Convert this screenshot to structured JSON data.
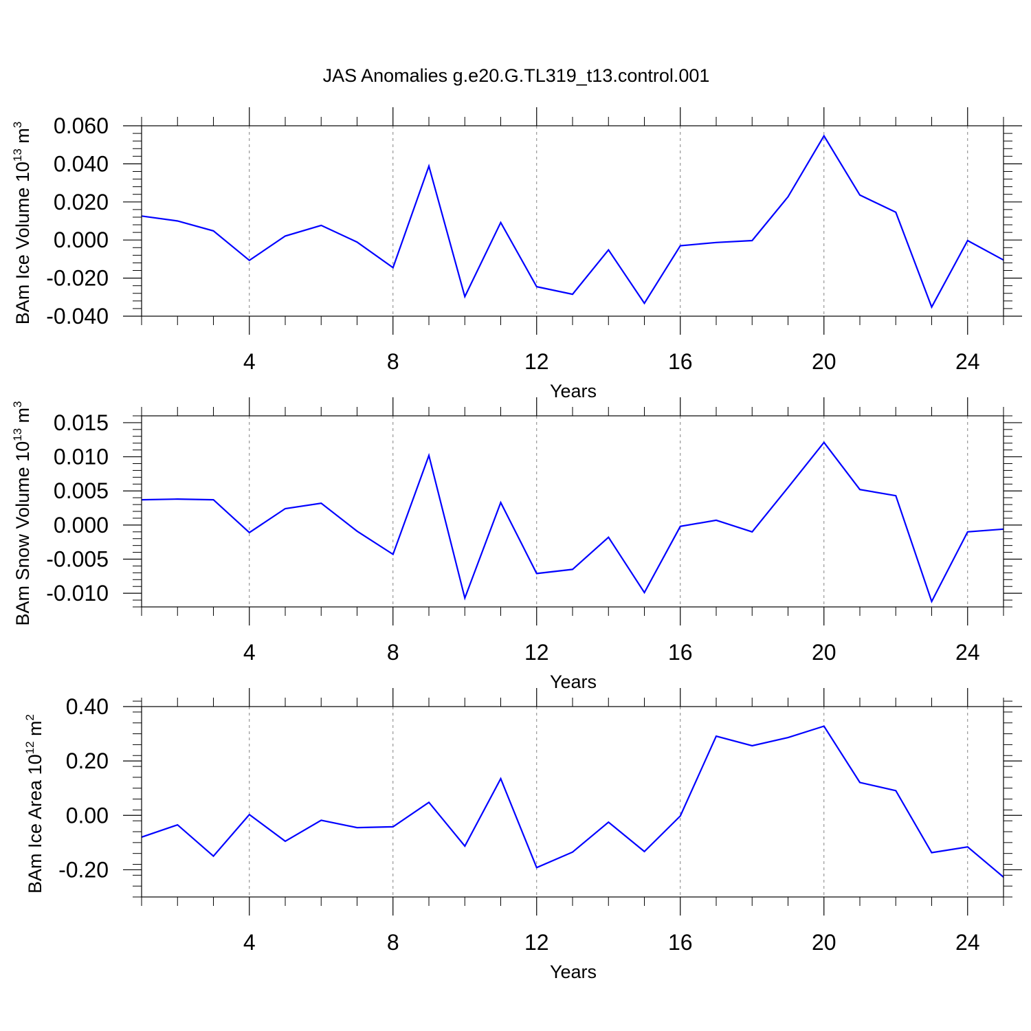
{
  "figure": {
    "title": "JAS Anomalies g.e20.G.TL319_t13.control.001"
  },
  "colors": {
    "series": "#0000ff",
    "axis": "#000000",
    "grid": "#808080"
  },
  "chart_data": [
    {
      "type": "line",
      "title": "",
      "ylabel": {
        "prefix": "BAm Ice Volume 10",
        "exp": "13",
        "unit": " m",
        "unit_exp": "3"
      },
      "xlabel": "Years",
      "xlim": [
        1,
        25
      ],
      "ylim": [
        -0.04,
        0.06
      ],
      "xticks": [
        4,
        8,
        12,
        16,
        20,
        24
      ],
      "xtick_labels": [
        "4",
        "8",
        "12",
        "16",
        "20",
        "24"
      ],
      "yticks": [
        -0.04,
        -0.02,
        0.0,
        0.02,
        0.04,
        0.06
      ],
      "ytick_labels": [
        "-0.040",
        "-0.020",
        "0.000",
        "0.020",
        "0.040",
        "0.060"
      ],
      "y_minor_step": 0.004,
      "grid": "vertical dashed at major x ticks",
      "x": [
        1,
        2,
        3,
        4,
        5,
        6,
        7,
        8,
        9,
        10,
        11,
        12,
        13,
        14,
        15,
        16,
        17,
        18,
        19,
        20,
        21,
        22,
        23,
        24,
        25
      ],
      "series": [
        {
          "name": "BAm Ice Volume",
          "values": [
            0.0126,
            0.01,
            0.0048,
            -0.0107,
            0.0021,
            0.0077,
            -0.0011,
            -0.0145,
            0.0388,
            -0.0297,
            0.0092,
            -0.0245,
            -0.0285,
            -0.0052,
            -0.0332,
            -0.003,
            -0.0013,
            -0.0003,
            0.0227,
            0.0547,
            0.0236,
            0.0146,
            -0.0352,
            -0.0003,
            -0.0105
          ]
        }
      ]
    },
    {
      "type": "line",
      "title": "",
      "ylabel": {
        "prefix": "BAm Snow Volume 10",
        "exp": "13",
        "unit": " m",
        "unit_exp": "3"
      },
      "xlabel": "Years",
      "xlim": [
        1,
        25
      ],
      "ylim": [
        -0.012,
        0.016
      ],
      "xticks": [
        4,
        8,
        12,
        16,
        20,
        24
      ],
      "xtick_labels": [
        "4",
        "8",
        "12",
        "16",
        "20",
        "24"
      ],
      "yticks": [
        -0.01,
        -0.005,
        0.0,
        0.005,
        0.01,
        0.015
      ],
      "ytick_labels": [
        "-0.010",
        "-0.005",
        "0.000",
        "0.005",
        "0.010",
        "0.015"
      ],
      "y_minor_step": 0.001,
      "grid": "vertical dashed at major x ticks",
      "x": [
        1,
        2,
        3,
        4,
        5,
        6,
        7,
        8,
        9,
        10,
        11,
        12,
        13,
        14,
        15,
        16,
        17,
        18,
        19,
        20,
        21,
        22,
        23,
        24,
        25
      ],
      "series": [
        {
          "name": "BAm Snow Volume",
          "values": [
            0.0037,
            0.0038,
            0.0037,
            -0.0011,
            0.0024,
            0.0032,
            -0.0009,
            -0.0043,
            0.0102,
            -0.0107,
            0.0033,
            -0.0071,
            -0.0065,
            -0.0018,
            -0.0099,
            -0.0002,
            0.0007,
            -0.001,
            0.0055,
            0.0121,
            0.0052,
            0.0043,
            -0.0112,
            -0.001,
            -0.0006
          ]
        }
      ]
    },
    {
      "type": "line",
      "title": "",
      "ylabel": {
        "prefix": "BAm Ice Area 10",
        "exp": "12",
        "unit": " m",
        "unit_exp": "2"
      },
      "xlabel": "Years",
      "xlim": [
        1,
        25
      ],
      "ylim": [
        -0.3,
        0.4
      ],
      "xticks": [
        4,
        8,
        12,
        16,
        20,
        24
      ],
      "xtick_labels": [
        "4",
        "8",
        "12",
        "16",
        "20",
        "24"
      ],
      "yticks": [
        -0.2,
        0.0,
        0.2,
        0.4
      ],
      "ytick_labels": [
        "-0.20",
        "0.00",
        "0.20",
        "0.40"
      ],
      "y_minor_step": 0.04,
      "grid": "vertical dashed at major x ticks",
      "x": [
        1,
        2,
        3,
        4,
        5,
        6,
        7,
        8,
        9,
        10,
        11,
        12,
        13,
        14,
        15,
        16,
        17,
        18,
        19,
        20,
        21,
        22,
        23,
        24,
        25
      ],
      "series": [
        {
          "name": "BAm Ice Area",
          "values": [
            -0.08,
            -0.035,
            -0.15,
            0.003,
            -0.095,
            -0.018,
            -0.045,
            -0.042,
            0.048,
            -0.113,
            0.135,
            -0.192,
            -0.135,
            -0.025,
            -0.133,
            -0.002,
            0.291,
            0.256,
            0.286,
            0.328,
            0.121,
            0.091,
            -0.137,
            -0.116,
            -0.227
          ]
        }
      ]
    }
  ]
}
